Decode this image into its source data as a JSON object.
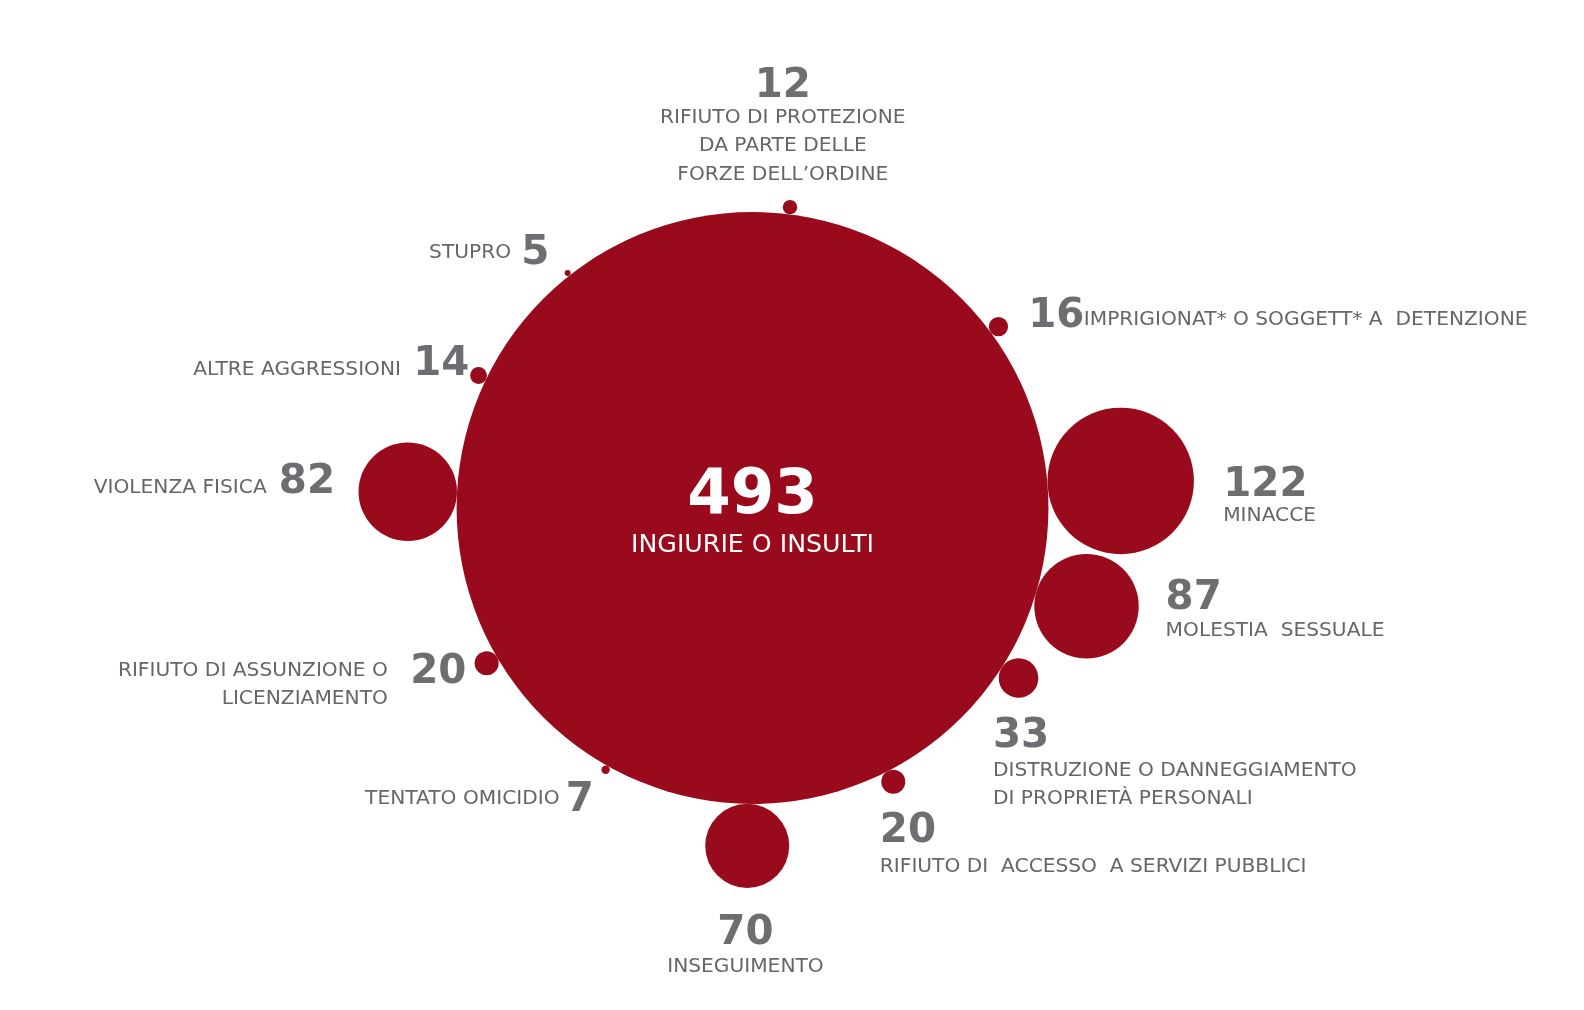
{
  "chart_data": {
    "type": "other",
    "categories": [
      "INGIURIE O INSULTI",
      "RIFIUTO DI PROTEZIONE\nDA PARTE DELLE\nFORZE DELL’ORDINE",
      "IMPRIGIONAT* O SOGGETT* A  DETENZIONE",
      "MINACCE",
      "MOLESTIA  SESSUALE",
      "DISTRUZIONE O DANNEGGIAMENTO\nDI PROPRIETÀ PERSONALI",
      "RIFIUTO DI  ACCESSO  A SERVIZI PUBBLICI",
      "INSEGUIMENTO",
      "TENTATO OMICIDIO",
      "RIFIUTO DI ASSUNZIONE O\nLICENZIAMENTO",
      "VIOLENZA FISICA",
      "ALTRE AGGRESSIONI",
      "STUPRO"
    ],
    "values": [
      493,
      12,
      16,
      122,
      87,
      33,
      20,
      70,
      7,
      20,
      82,
      14,
      5
    ],
    "color": "#990a1c",
    "data_labels": true
  }
}
